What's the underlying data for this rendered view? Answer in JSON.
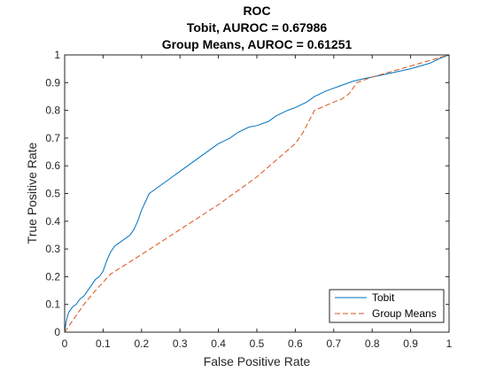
{
  "chart_data": {
    "type": "line",
    "title": [
      "ROC",
      "Tobit, AUROC = 0.67986",
      "Group Means, AUROC = 0.61251"
    ],
    "xlabel": "False Positive Rate",
    "ylabel": "True Positive Rate",
    "xlim": [
      0,
      1
    ],
    "ylim": [
      0,
      1
    ],
    "xticks": [
      "0",
      "0.1",
      "0.2",
      "0.3",
      "0.4",
      "0.5",
      "0.6",
      "0.7",
      "0.8",
      "0.9",
      "1"
    ],
    "yticks": [
      "0",
      "0.1",
      "0.2",
      "0.3",
      "0.4",
      "0.5",
      "0.6",
      "0.7",
      "0.8",
      "0.9",
      "1"
    ],
    "grid": false,
    "legend_position": "bottom-right",
    "series": [
      {
        "name": "Tobit",
        "color": "#0072BD",
        "style": "solid",
        "x": [
          0,
          0.003,
          0.006,
          0.01,
          0.015,
          0.02,
          0.03,
          0.04,
          0.05,
          0.06,
          0.07,
          0.08,
          0.09,
          0.1,
          0.11,
          0.12,
          0.13,
          0.14,
          0.15,
          0.16,
          0.17,
          0.18,
          0.19,
          0.2,
          0.21,
          0.22,
          0.23,
          0.24,
          0.25,
          0.27,
          0.3,
          0.33,
          0.35,
          0.38,
          0.4,
          0.43,
          0.45,
          0.48,
          0.5,
          0.53,
          0.55,
          0.58,
          0.6,
          0.63,
          0.65,
          0.68,
          0.7,
          0.73,
          0.75,
          0.78,
          0.8,
          0.85,
          0.9,
          0.95,
          0.98,
          1
        ],
        "y": [
          0,
          0.03,
          0.05,
          0.07,
          0.08,
          0.09,
          0.1,
          0.12,
          0.13,
          0.15,
          0.17,
          0.19,
          0.2,
          0.22,
          0.26,
          0.29,
          0.31,
          0.32,
          0.33,
          0.34,
          0.35,
          0.37,
          0.4,
          0.44,
          0.47,
          0.5,
          0.51,
          0.52,
          0.53,
          0.55,
          0.58,
          0.61,
          0.63,
          0.66,
          0.68,
          0.7,
          0.72,
          0.74,
          0.745,
          0.76,
          0.78,
          0.8,
          0.81,
          0.83,
          0.85,
          0.87,
          0.88,
          0.895,
          0.905,
          0.915,
          0.92,
          0.935,
          0.95,
          0.97,
          0.99,
          1
        ]
      },
      {
        "name": "Group Means",
        "color": "#D95319",
        "style": "dashed",
        "x": [
          0,
          0.05,
          0.08,
          0.12,
          0.2,
          0.3,
          0.4,
          0.5,
          0.6,
          0.62,
          0.65,
          0.7,
          0.72,
          0.74,
          0.76,
          0.8,
          0.85,
          0.9,
          0.95,
          1
        ],
        "y": [
          0,
          0.1,
          0.15,
          0.21,
          0.28,
          0.37,
          0.46,
          0.56,
          0.68,
          0.72,
          0.8,
          0.83,
          0.84,
          0.86,
          0.9,
          0.92,
          0.94,
          0.96,
          0.98,
          1
        ]
      }
    ]
  }
}
